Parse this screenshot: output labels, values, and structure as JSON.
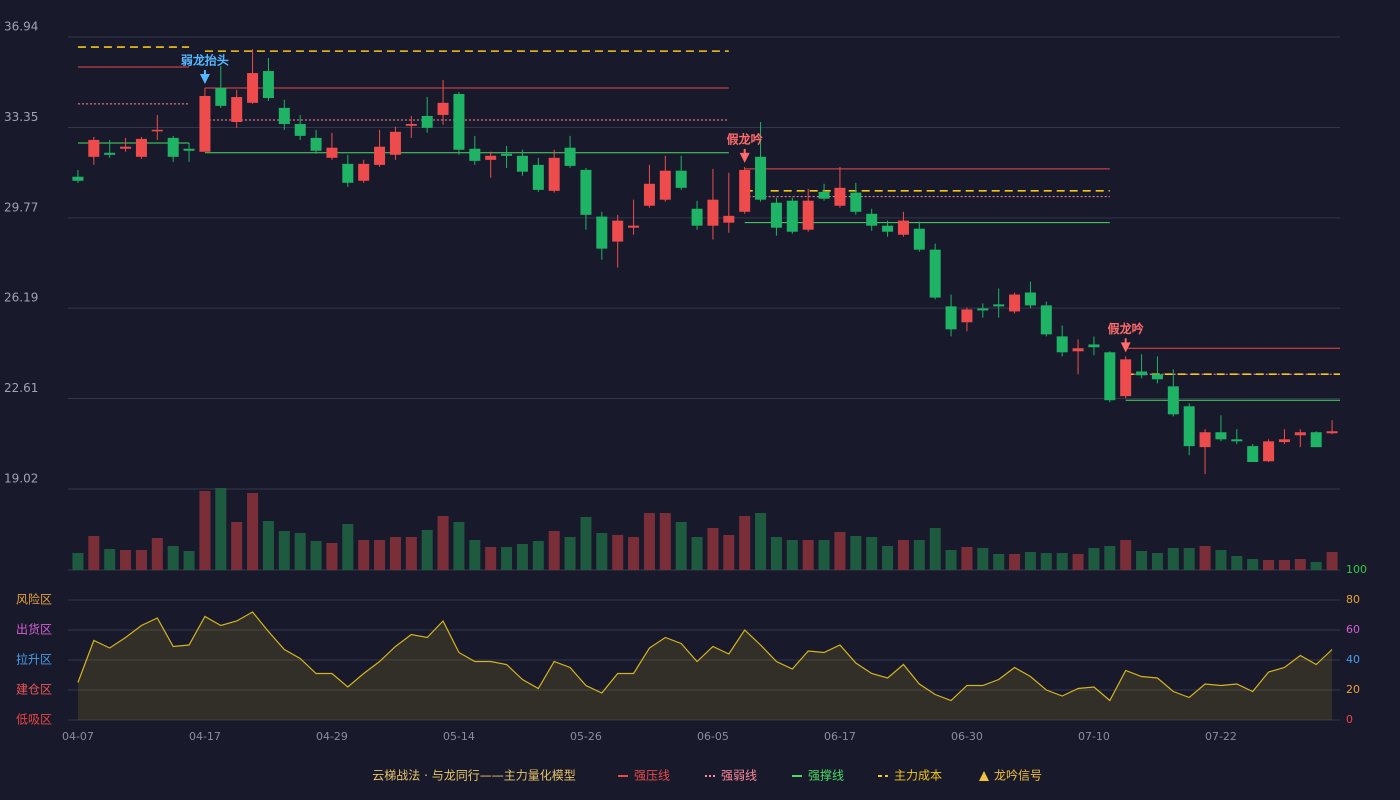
{
  "chart_data": {
    "type": "candlestick",
    "categories": [
      "04-07",
      null,
      null,
      null,
      null,
      null,
      null,
      null,
      "04-17",
      null,
      null,
      null,
      null,
      null,
      null,
      null,
      "04-29",
      null,
      null,
      null,
      null,
      null,
      null,
      null,
      "05-14",
      null,
      null,
      null,
      null,
      null,
      null,
      null,
      "05-26",
      null,
      null,
      null,
      null,
      null,
      null,
      null,
      "06-05",
      null,
      null,
      null,
      null,
      null,
      null,
      null,
      "06-17",
      null,
      null,
      null,
      null,
      null,
      null,
      null,
      "06-30",
      null,
      null,
      null,
      null,
      null,
      null,
      null,
      "07-10",
      null,
      null,
      null,
      null,
      null,
      null,
      null,
      "07-22",
      null,
      null,
      null,
      null,
      null,
      null,
      null
    ],
    "open": [
      31.4,
      32.19,
      32.35,
      32.51,
      32.19,
      33.22,
      32.94,
      32.51,
      32.39,
      34.92,
      33.57,
      34.33,
      35.59,
      34.13,
      33.49,
      32.94,
      32.15,
      31.91,
      31.24,
      31.87,
      32.27,
      33.42,
      33.81,
      33.85,
      34.68,
      32.51,
      32.07,
      32.31,
      32.23,
      31.87,
      30.84,
      32.55,
      31.67,
      29.82,
      28.83,
      29.38,
      30.25,
      30.49,
      31.64,
      30.13,
      29.46,
      29.58,
      30.01,
      32.19,
      30.37,
      30.45,
      29.3,
      30.8,
      30.25,
      30.77,
      29.93,
      29.46,
      29.1,
      29.34,
      28.51,
      26.26,
      25.63,
      26.18,
      26.34,
      26.06,
      26.81,
      26.3,
      25.07,
      24.48,
      24.75,
      24.44,
      22.7,
      23.68,
      23.57,
      23.09,
      22.3,
      20.68,
      21.27,
      20.99,
      20.72,
      20.12,
      20.88,
      21.15,
      21.27,
      21.23
    ],
    "high": [
      31.67,
      32.98,
      32.86,
      32.94,
      32.98,
      33.85,
      33.02,
      32.74,
      34.92,
      35.79,
      34.84,
      36.46,
      36.11,
      34.45,
      33.85,
      33.26,
      33.14,
      32.27,
      32.07,
      33.26,
      33.38,
      33.81,
      34.56,
      35.24,
      34.76,
      33.02,
      32.39,
      32.62,
      32.47,
      32.15,
      32.47,
      33.02,
      31.75,
      30.01,
      29.89,
      30.49,
      31.87,
      32.23,
      32.23,
      30.45,
      31.71,
      31.56,
      31.79,
      33.57,
      30.57,
      30.57,
      30.92,
      31.12,
      31.79,
      31.16,
      30.13,
      29.66,
      30.01,
      29.62,
      28.75,
      26.73,
      26.22,
      26.38,
      26.97,
      26.81,
      27.24,
      26.45,
      25.5,
      24.95,
      25.07,
      24.48,
      24.28,
      24.36,
      24.28,
      23.76,
      22.42,
      21.39,
      21.94,
      21.39,
      20.8,
      20.99,
      21.39,
      21.39,
      21.31,
      21.75
    ],
    "low": [
      31.16,
      31.87,
      32.15,
      32.39,
      32.11,
      32.86,
      31.99,
      31.99,
      32.39,
      34.13,
      33.34,
      34.29,
      34.4,
      33.26,
      32.86,
      32.31,
      32.07,
      31.0,
      31.16,
      31.79,
      32.07,
      32.94,
      33.14,
      33.46,
      32.27,
      31.87,
      31.36,
      31.75,
      31.44,
      30.8,
      30.77,
      31.75,
      29.3,
      28.11,
      27.8,
      29.1,
      30.17,
      30.41,
      30.88,
      29.3,
      28.91,
      29.18,
      29.93,
      30.41,
      29.06,
      29.14,
      29.22,
      30.45,
      30.17,
      29.89,
      29.26,
      29.02,
      29.02,
      28.43,
      26.54,
      25.07,
      25.27,
      25.82,
      25.82,
      25.98,
      26.18,
      25.07,
      24.28,
      23.57,
      24.32,
      22.46,
      22.62,
      23.41,
      23.21,
      21.9,
      20.36,
      19.61,
      20.91,
      20.8,
      20.09,
      20.09,
      20.8,
      20.68,
      20.68,
      21.19
    ],
    "close": [
      31.24,
      32.86,
      32.27,
      32.59,
      32.9,
      33.26,
      32.19,
      32.43,
      34.6,
      34.21,
      34.56,
      35.51,
      34.52,
      33.49,
      33.02,
      32.43,
      32.55,
      31.16,
      31.91,
      32.59,
      33.18,
      33.49,
      33.34,
      34.33,
      32.47,
      32.03,
      32.23,
      32.23,
      31.6,
      30.88,
      32.15,
      31.83,
      29.89,
      28.55,
      29.66,
      29.46,
      31.12,
      31.64,
      30.96,
      29.46,
      30.49,
      29.85,
      31.67,
      30.49,
      29.38,
      29.22,
      30.45,
      30.53,
      30.96,
      30.01,
      29.46,
      29.22,
      29.66,
      28.51,
      26.61,
      25.35,
      26.14,
      26.1,
      26.26,
      26.73,
      26.3,
      25.15,
      24.44,
      24.6,
      24.64,
      22.54,
      24.16,
      23.53,
      23.37,
      21.98,
      20.72,
      21.27,
      20.99,
      20.91,
      20.09,
      20.91,
      20.99,
      21.27,
      20.68,
      21.31
    ],
    "up_color": "#ee4c4c",
    "down_color": "#1fb465",
    "ylim": [
      19.02,
      36.94
    ],
    "yticks": [
      36.94,
      33.35,
      29.77,
      26.19,
      22.61,
      19.02
    ],
    "volume": {
      "values": [
        17,
        34,
        21,
        20,
        20,
        32,
        24,
        19,
        79,
        82,
        48,
        77,
        49,
        39,
        37,
        29,
        27,
        46,
        30,
        30,
        33,
        33,
        40,
        54,
        48,
        30,
        23,
        23,
        26,
        29,
        39,
        33,
        53,
        37,
        35,
        33,
        57,
        57,
        48,
        33,
        42,
        35,
        54,
        57,
        33,
        30,
        30,
        30,
        38,
        34,
        33,
        24,
        30,
        30,
        42,
        20,
        23,
        22,
        16,
        16,
        18,
        17,
        17,
        16,
        22,
        24,
        30,
        19,
        17,
        22,
        22,
        24,
        20,
        14,
        11,
        10,
        10,
        11,
        8,
        18
      ],
      "up_color": "#7a2f38",
      "down_color": "#1d5a40"
    },
    "indicator": {
      "values": [
        25,
        53,
        48,
        55,
        63,
        68,
        49,
        50,
        69,
        63,
        66,
        72,
        59,
        47,
        41,
        31,
        31,
        22,
        31,
        39,
        49,
        57,
        55,
        66,
        45,
        39,
        39,
        37,
        27,
        21,
        39,
        35,
        23,
        18,
        31,
        31,
        48,
        55,
        51,
        39,
        49,
        44,
        60,
        50,
        39,
        34,
        46,
        45,
        50,
        38,
        31,
        28,
        37,
        24,
        17,
        13,
        23,
        23,
        27,
        35,
        29,
        20,
        16,
        21,
        22,
        13,
        33,
        29,
        28,
        19,
        15,
        24,
        23,
        24,
        19,
        32,
        35,
        43,
        37,
        47
      ],
      "color": "#d4b41e",
      "ylim": [
        0,
        100
      ],
      "yticks": [
        0,
        20,
        40,
        60,
        80,
        100
      ],
      "tick_colors": [
        "#ee4444",
        "#e6a23c",
        "#4a9de8",
        "#d45fd4",
        "#e6a23c",
        "#2ecc40"
      ],
      "zones": [
        {
          "label": "风险区",
          "value": 80,
          "color": "#e6a23c"
        },
        {
          "label": "出货区",
          "value": 60,
          "color": "#d45fd4"
        },
        {
          "label": "拉升区",
          "value": 40,
          "color": "#4a9de8"
        },
        {
          "label": "建仓区",
          "value": 20,
          "color": "#ee5555"
        },
        {
          "label": "低吸区",
          "value": 0,
          "color": "#ee4444"
        }
      ]
    },
    "levels": [
      {
        "name": "强压线",
        "color": "#e84a4a",
        "style": "solid",
        "segments": [
          {
            "value": 35.75,
            "start": 0,
            "end": 7
          },
          {
            "value": 34.92,
            "start": 8,
            "end": 41
          },
          {
            "value": 31.71,
            "start": 42,
            "end": 65
          },
          {
            "value": 24.6,
            "start": 66,
            "end": 79
          }
        ]
      },
      {
        "name": "强弱线",
        "color": "#ff8a9a",
        "style": "dotted",
        "segments": [
          {
            "value": 34.29,
            "start": 0,
            "end": 7
          },
          {
            "value": 33.65,
            "start": 8,
            "end": 41
          },
          {
            "value": 30.61,
            "start": 42,
            "end": 65
          },
          {
            "value": 23.57,
            "start": 66,
            "end": 79
          }
        ]
      },
      {
        "name": "强撑线",
        "color": "#4cd964",
        "style": "solid",
        "segments": [
          {
            "value": 32.74,
            "start": 0,
            "end": 7
          },
          {
            "value": 32.35,
            "start": 8,
            "end": 41
          },
          {
            "value": 29.58,
            "start": 42,
            "end": 65
          },
          {
            "value": 22.54,
            "start": 66,
            "end": 79
          }
        ]
      },
      {
        "name": "主力成本",
        "color": "#f5c518",
        "style": "dashed",
        "segments": [
          {
            "value": 36.54,
            "start": 0,
            "end": 7
          },
          {
            "value": 36.38,
            "start": 8,
            "end": 41
          },
          {
            "value": 30.84,
            "start": 42,
            "end": 65
          },
          {
            "value": 23.57,
            "start": 66,
            "end": 79
          }
        ]
      }
    ],
    "signals": [
      {
        "label": "弱龙抬头",
        "index": 8,
        "color": "#55b8ff"
      },
      {
        "label": "假龙吟",
        "index": 42,
        "color": "#ff6b6b"
      },
      {
        "label": "假龙吟",
        "index": 66,
        "color": "#ff6b6b"
      }
    ],
    "legend_title": "云梯战法 · 与龙同行——主力量化模型",
    "legend_signal": {
      "name": "龙吟信号",
      "color": "#f0c040"
    }
  }
}
